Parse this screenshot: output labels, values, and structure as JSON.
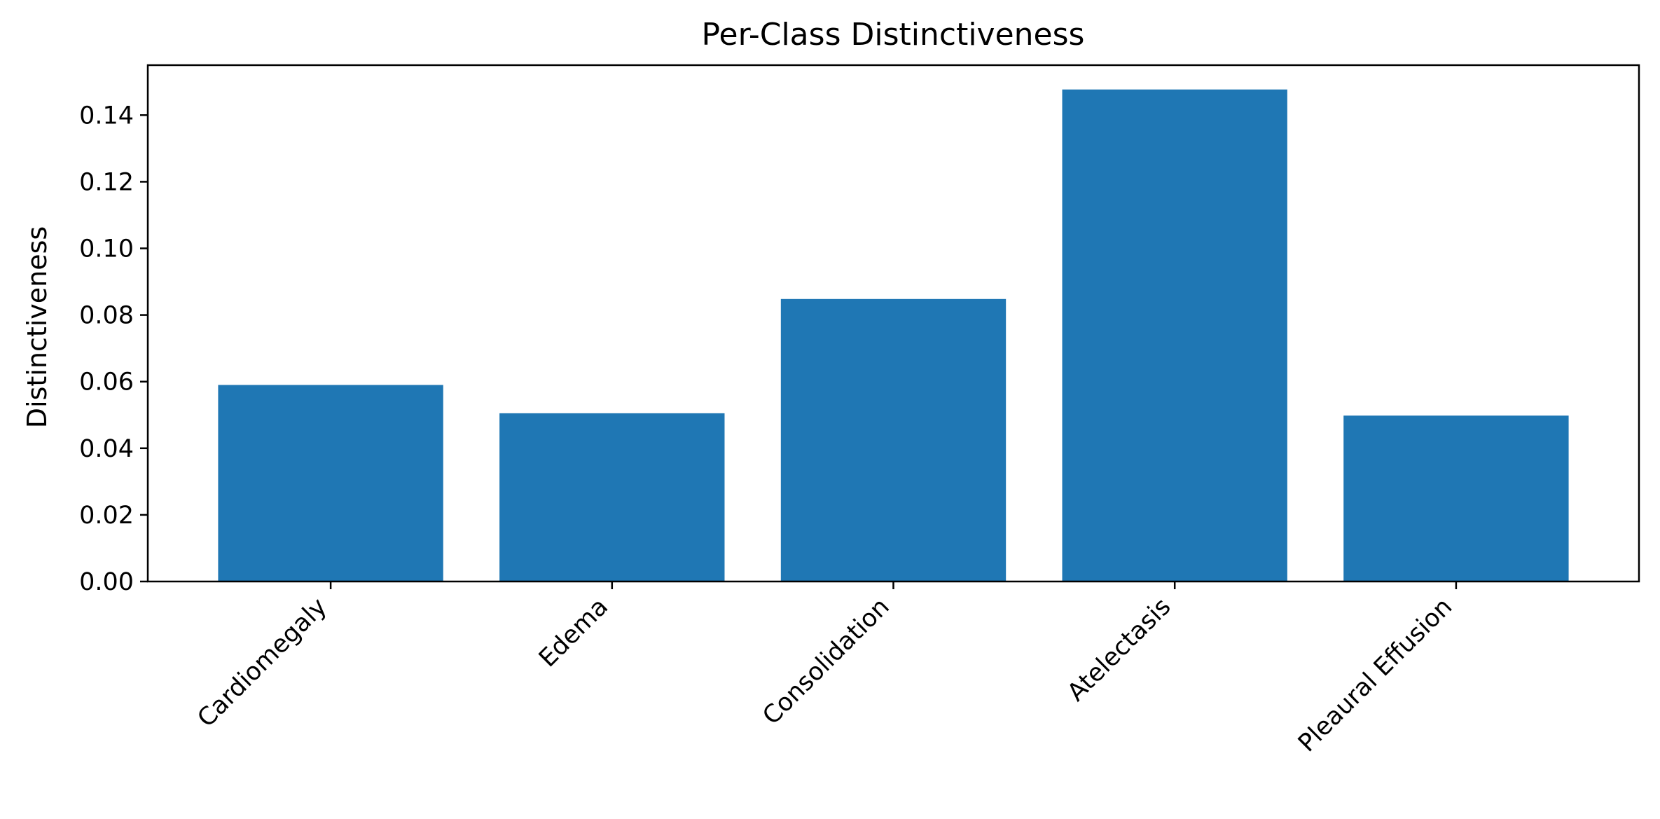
{
  "chart_data": {
    "type": "bar",
    "title": "Per-Class Distinctiveness",
    "xlabel": "",
    "ylabel": "Distinctiveness",
    "categories": [
      "Cardiomegaly",
      "Edema",
      "Consolidation",
      "Atelectasis",
      "Pleaural Effusion"
    ],
    "values": [
      0.059,
      0.0505,
      0.0848,
      0.1477,
      0.0498
    ],
    "ylim": [
      0,
      0.155
    ],
    "yticks": [
      "0.00",
      "0.02",
      "0.04",
      "0.06",
      "0.08",
      "0.10",
      "0.12",
      "0.14"
    ],
    "grid": false,
    "bar_color": "#1f77b4"
  }
}
